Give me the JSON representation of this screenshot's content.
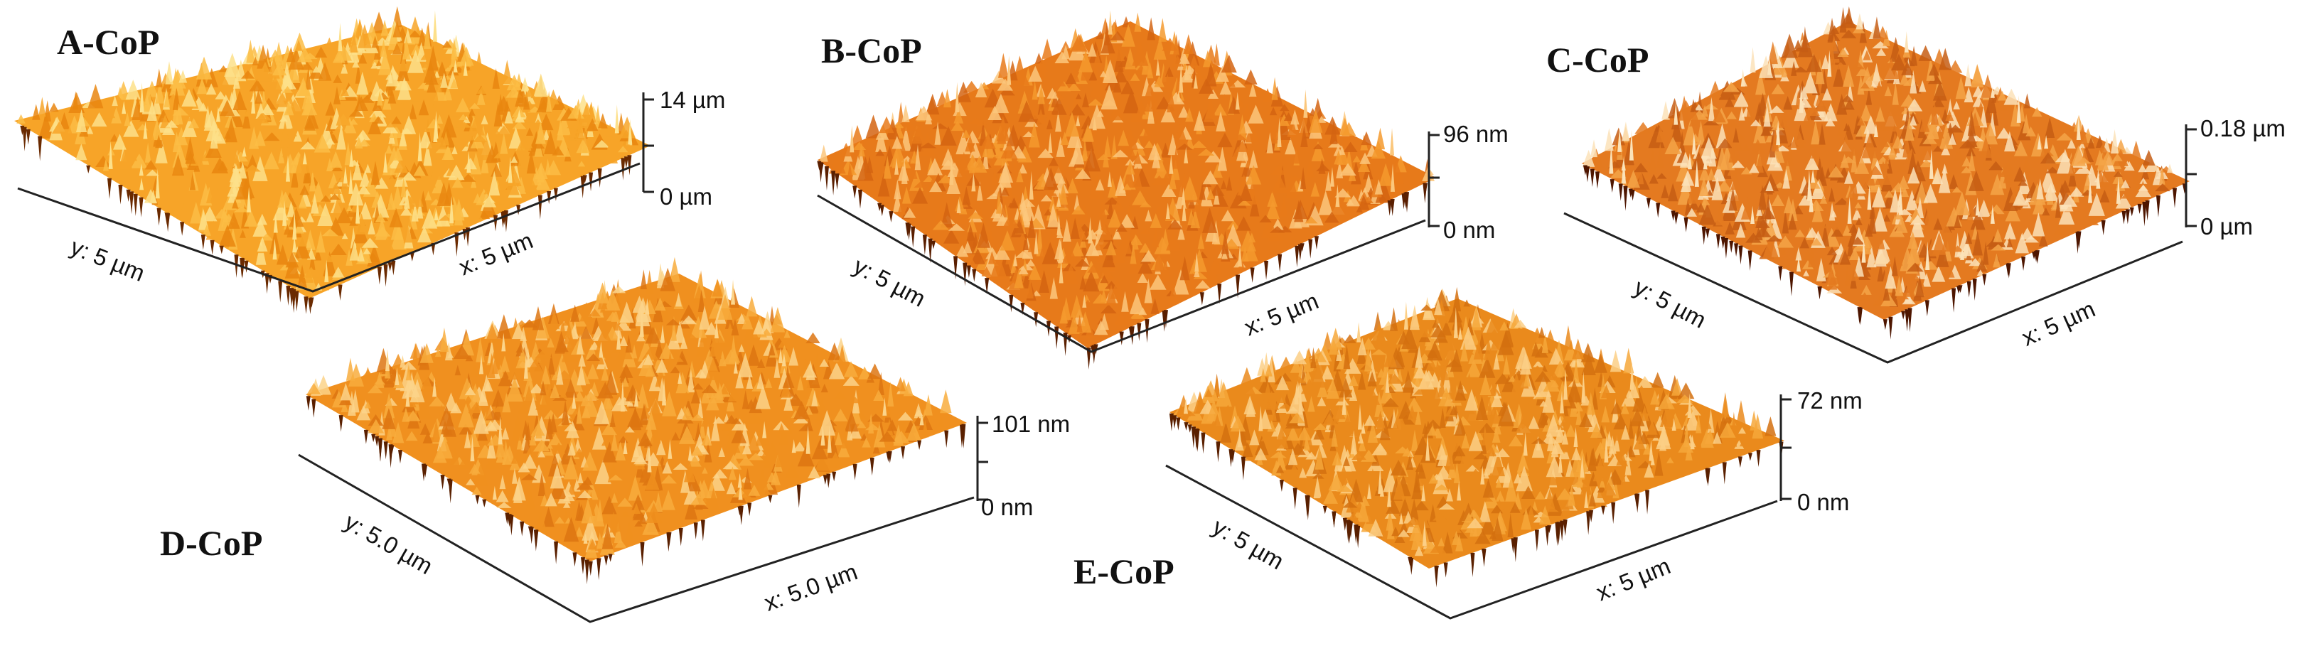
{
  "figure": {
    "panels": [
      {
        "id": "A",
        "title": "A-CoP",
        "y_axis": "y: 5 µm",
        "x_axis": "x: 5 µm",
        "z_max": "14 µm",
        "z_min": "0 µm",
        "surface_colors": [
          "#f7a428",
          "#fbbd45",
          "#e9860f",
          "#fde08a",
          "#c9600a",
          "#6a2a00"
        ]
      },
      {
        "id": "B",
        "title": "B-CoP",
        "y_axis": "y: 5 µm",
        "x_axis": "x: 5 µm",
        "z_max": "96 nm",
        "z_min": "0 nm",
        "surface_colors": [
          "#e77a1a",
          "#f49a2e",
          "#d36412",
          "#fbc77c",
          "#b24d0c",
          "#5a1f00"
        ]
      },
      {
        "id": "C",
        "title": "C-CoP",
        "y_axis": "y: 5 µm",
        "x_axis": "x: 5 µm",
        "z_max": "0.18 µm",
        "z_min": "0 µm",
        "surface_colors": [
          "#e47a20",
          "#f4a548",
          "#c65d14",
          "#fbe2b8",
          "#a23e0c",
          "#4e1600"
        ]
      },
      {
        "id": "D",
        "title": "D-CoP",
        "y_axis": "y: 5.0 µm",
        "x_axis": "x: 5.0 µm",
        "z_max": "101 nm",
        "z_min": "0 nm",
        "surface_colors": [
          "#f0901f",
          "#f8ad3d",
          "#dd7612",
          "#fcd48a",
          "#b8560c",
          "#5a2000"
        ]
      },
      {
        "id": "E",
        "title": "E-CoP",
        "y_axis": "y: 5 µm",
        "x_axis": "x: 5 µm",
        "z_max": "72 nm",
        "z_min": "0 nm",
        "surface_colors": [
          "#ea8a1c",
          "#f6a73a",
          "#d3700f",
          "#fccf86",
          "#b0500b",
          "#5a2000"
        ]
      }
    ]
  }
}
